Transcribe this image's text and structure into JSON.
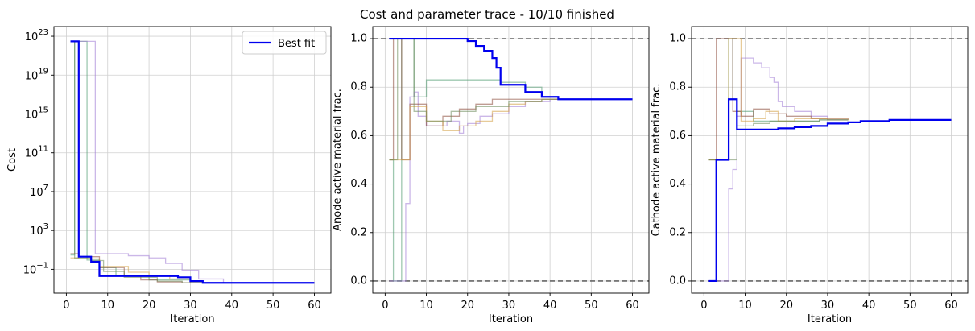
{
  "title": "Cost and parameter trace - 10/10 finished",
  "colors": {
    "best_fit": "#0000ee",
    "bounds": "#666666",
    "grid": "#d0d0d0",
    "trace_colors": [
      "#4f9a6f",
      "#a07bd6",
      "#8b4a3a",
      "#d4a045",
      "#6b8a5a"
    ]
  },
  "chart_data": [
    {
      "type": "line",
      "title": "",
      "xlabel": "Iteration",
      "ylabel": "Cost",
      "yscale": "log",
      "xlim": [
        -3,
        64
      ],
      "ylim": [
        0.00035,
        1e+24
      ],
      "xticks": [
        0,
        10,
        20,
        30,
        40,
        50,
        60
      ],
      "xtick_labels": [
        "0",
        "10",
        "20",
        "30",
        "40",
        "50",
        "60"
      ],
      "yticks": [
        0.1,
        1000,
        10000000.0,
        100000000000.0,
        1000000000000000.0,
        1e+19,
        1e+23
      ],
      "ytick_labels": [
        "10^-1",
        "10^3",
        "10^7",
        "10^11",
        "10^15",
        "10^19",
        "10^23"
      ],
      "grid": true,
      "legend": {
        "entries": [
          "Best fit"
        ],
        "placement": "upper right"
      },
      "series": [
        {
          "name": "Best fit",
          "style": "best",
          "step": true,
          "x": [
            1,
            3,
            6,
            8,
            27,
            30,
            33,
            60
          ],
          "y": [
            3e+22,
            2.0,
            0.6,
            0.02,
            0.015,
            0.006,
            0.004,
            0.004
          ]
        },
        {
          "style": "trace",
          "color_index": 0,
          "step": true,
          "x": [
            1,
            2,
            5,
            8,
            12,
            20,
            30,
            60
          ],
          "y": [
            3,
            3e+22,
            0.9,
            0.15,
            0.02,
            0.008,
            0.004,
            0.004
          ]
        },
        {
          "style": "trace",
          "color_index": 1,
          "step": true,
          "x": [
            1,
            6,
            7,
            15,
            20,
            24,
            28,
            32,
            38,
            60
          ],
          "y": [
            3e+22,
            3e+22,
            4,
            2.5,
            1.5,
            0.4,
            0.08,
            0.01,
            0.004,
            0.004
          ]
        },
        {
          "style": "trace",
          "color_index": 2,
          "step": true,
          "x": [
            1,
            3,
            8,
            14,
            18,
            22,
            28,
            60
          ],
          "y": [
            4,
            2,
            0.15,
            0.02,
            0.008,
            0.005,
            0.004,
            0.004
          ]
        },
        {
          "style": "trace",
          "color_index": 3,
          "step": true,
          "x": [
            1,
            3,
            8,
            15,
            20,
            25,
            30,
            60
          ],
          "y": [
            1.5,
            1.2,
            0.2,
            0.05,
            0.02,
            0.01,
            0.004,
            0.004
          ]
        },
        {
          "style": "trace",
          "color_index": 4,
          "step": true,
          "x": [
            1,
            2,
            6,
            9,
            14,
            22,
            28,
            60
          ],
          "y": [
            3e+22,
            1.5,
            0.8,
            0.06,
            0.015,
            0.006,
            0.004,
            0.004
          ]
        }
      ]
    },
    {
      "type": "line",
      "title": "",
      "xlabel": "Iteration",
      "ylabel": "Anode active material frac.",
      "yscale": "linear",
      "xlim": [
        -3,
        64
      ],
      "ylim": [
        -0.05,
        1.05
      ],
      "xticks": [
        0,
        10,
        20,
        30,
        40,
        50,
        60
      ],
      "xtick_labels": [
        "0",
        "10",
        "20",
        "30",
        "40",
        "50",
        "60"
      ],
      "yticks": [
        0.0,
        0.2,
        0.4,
        0.6,
        0.8,
        1.0
      ],
      "ytick_labels": [
        "0.0",
        "0.2",
        "0.4",
        "0.6",
        "0.8",
        "1.0"
      ],
      "grid": true,
      "hlines": [
        0.0,
        1.0
      ],
      "series": [
        {
          "name": "Best fit",
          "style": "best",
          "step": true,
          "x": [
            1,
            20,
            22,
            24,
            26,
            27,
            28,
            30,
            34,
            38,
            42,
            60
          ],
          "y": [
            1.0,
            0.99,
            0.97,
            0.95,
            0.92,
            0.88,
            0.81,
            0.81,
            0.78,
            0.76,
            0.75,
            0.75
          ]
        },
        {
          "style": "trace",
          "color_index": 0,
          "step": true,
          "x": [
            1,
            2,
            4,
            7,
            10,
            20,
            28,
            34,
            38,
            42
          ],
          "y": [
            0.5,
            0.0,
            1.0,
            0.76,
            0.83,
            0.83,
            0.82,
            0.8,
            0.76,
            0.75
          ]
        },
        {
          "style": "trace",
          "color_index": 1,
          "step": true,
          "x": [
            1,
            5,
            6,
            7,
            8,
            10,
            15,
            18,
            19,
            20,
            23,
            26,
            30,
            34,
            40,
            42
          ],
          "y": [
            0.0,
            0.32,
            0.76,
            0.78,
            0.68,
            0.64,
            0.66,
            0.61,
            0.64,
            0.65,
            0.68,
            0.69,
            0.72,
            0.74,
            0.75,
            0.75
          ]
        },
        {
          "style": "trace",
          "color_index": 2,
          "step": true,
          "x": [
            1,
            2,
            4,
            6,
            10,
            14,
            18,
            22,
            26,
            30,
            35,
            40,
            42
          ],
          "y": [
            0.5,
            1.0,
            0.5,
            0.73,
            0.64,
            0.68,
            0.71,
            0.73,
            0.75,
            0.75,
            0.75,
            0.75,
            0.75
          ]
        },
        {
          "style": "trace",
          "color_index": 3,
          "step": true,
          "x": [
            1,
            3,
            6,
            10,
            14,
            18,
            22,
            26,
            30,
            34,
            38,
            42
          ],
          "y": [
            0.5,
            0.5,
            0.72,
            0.66,
            0.62,
            0.64,
            0.66,
            0.7,
            0.73,
            0.74,
            0.75,
            0.75
          ]
        },
        {
          "style": "trace",
          "color_index": 4,
          "step": true,
          "x": [
            1,
            3,
            7,
            10,
            16,
            22,
            30,
            38,
            42
          ],
          "y": [
            0.5,
            1.0,
            0.7,
            0.66,
            0.7,
            0.72,
            0.74,
            0.75,
            0.75
          ]
        }
      ]
    },
    {
      "type": "line",
      "title": "",
      "xlabel": "Iteration",
      "ylabel": "Cathode active material frac.",
      "yscale": "linear",
      "xlim": [
        -3,
        64
      ],
      "ylim": [
        -0.05,
        1.05
      ],
      "xticks": [
        0,
        10,
        20,
        30,
        40,
        50,
        60
      ],
      "xtick_labels": [
        "0",
        "10",
        "20",
        "30",
        "40",
        "50",
        "60"
      ],
      "yticks": [
        0.0,
        0.2,
        0.4,
        0.6,
        0.8,
        1.0
      ],
      "ytick_labels": [
        "0.0",
        "0.2",
        "0.4",
        "0.6",
        "0.8",
        "1.0"
      ],
      "grid": true,
      "hlines": [
        0.0,
        1.0
      ],
      "series": [
        {
          "name": "Best fit",
          "style": "best",
          "step": true,
          "x": [
            1,
            3,
            6,
            8,
            18,
            22,
            26,
            30,
            35,
            38,
            45,
            60
          ],
          "y": [
            0.0,
            0.5,
            0.75,
            0.625,
            0.63,
            0.635,
            0.64,
            0.65,
            0.655,
            0.66,
            0.665,
            0.665
          ]
        },
        {
          "style": "trace",
          "color_index": 0,
          "step": true,
          "x": [
            1,
            4,
            6,
            7,
            8,
            12,
            20,
            28,
            35
          ],
          "y": [
            0.5,
            0.5,
            1.0,
            0.75,
            0.7,
            0.66,
            0.66,
            0.665,
            0.665
          ]
        },
        {
          "style": "trace",
          "color_index": 1,
          "step": true,
          "x": [
            1,
            6,
            7,
            8,
            9,
            12,
            14,
            16,
            17,
            18,
            19,
            22,
            26,
            30,
            35
          ],
          "y": [
            0.0,
            0.38,
            0.46,
            0.68,
            0.92,
            0.9,
            0.88,
            0.84,
            0.82,
            0.74,
            0.72,
            0.7,
            0.68,
            0.67,
            0.665
          ]
        },
        {
          "style": "trace",
          "color_index": 2,
          "step": true,
          "x": [
            1,
            3,
            5,
            7,
            9,
            12,
            16,
            20,
            26,
            30,
            35
          ],
          "y": [
            0.5,
            1.0,
            1.0,
            0.7,
            0.68,
            0.71,
            0.69,
            0.68,
            0.67,
            0.665,
            0.665
          ]
        },
        {
          "style": "trace",
          "color_index": 3,
          "step": true,
          "x": [
            1,
            3,
            6,
            9,
            12,
            15,
            18,
            22,
            28,
            35
          ],
          "y": [
            0.5,
            0.5,
            1.0,
            0.66,
            0.67,
            0.7,
            0.66,
            0.67,
            0.67,
            0.665
          ]
        },
        {
          "style": "trace",
          "color_index": 4,
          "step": true,
          "x": [
            1,
            4,
            8,
            12,
            16,
            22,
            28,
            35
          ],
          "y": [
            0.5,
            0.5,
            0.64,
            0.65,
            0.66,
            0.66,
            0.665,
            0.665
          ]
        }
      ]
    }
  ]
}
